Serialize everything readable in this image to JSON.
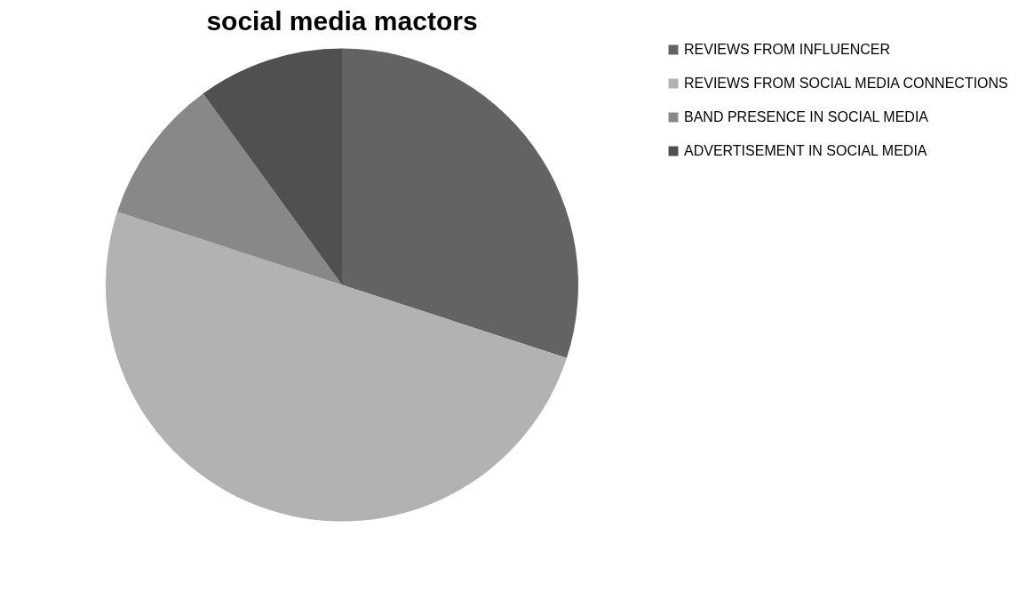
{
  "chart_data": {
    "type": "pie",
    "title": "social media mactors",
    "categories": [
      "REVIEWS FROM INFLUENCER",
      "REVIEWS FROM SOCIAL MEDIA CONNECTIONS",
      "BAND PRESENCE IN SOCIAL MEDIA",
      "ADVERTISEMENT IN SOCIAL MEDIA"
    ],
    "values": [
      30,
      50,
      10,
      10
    ],
    "colors": [
      "#636363",
      "#b2b2b2",
      "#888888",
      "#505050"
    ],
    "legend": "right"
  }
}
